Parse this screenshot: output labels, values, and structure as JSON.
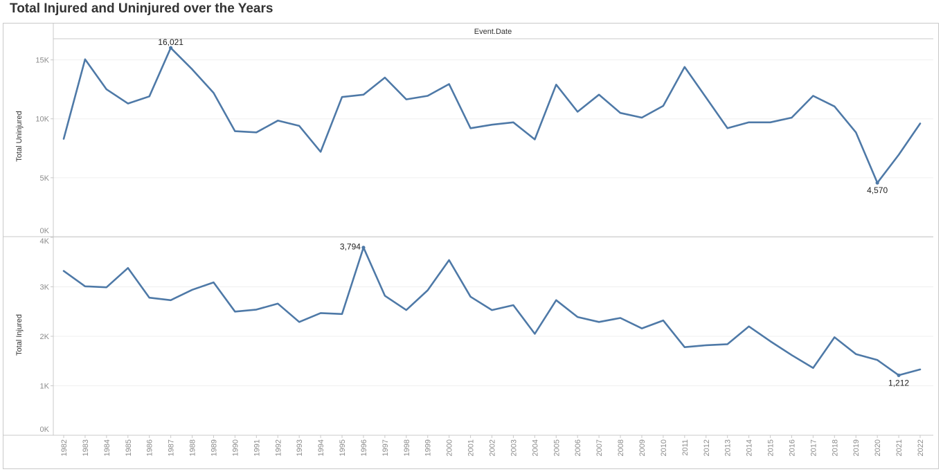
{
  "title": "Total Injured and Uninjured over the Years",
  "chart_data": {
    "type": "line",
    "title": "Total Injured and Uninjured over the Years",
    "column_header": "Event.Date",
    "x_ticks": [
      "1982",
      "1983",
      "1984",
      "1985",
      "1986",
      "1987",
      "1988",
      "1989",
      "1990",
      "1991",
      "1992",
      "1993",
      "1994",
      "1995",
      "1996",
      "1997",
      "1998",
      "1999",
      "2000",
      "2001",
      "2002",
      "2003",
      "2004",
      "2005",
      "2006",
      "2007",
      "2008",
      "2009",
      "2010",
      "2011",
      "2012",
      "2013",
      "2014",
      "2015",
      "2016",
      "2017",
      "2018",
      "2019",
      "2020",
      "2021",
      "2022"
    ],
    "line_color": "#4e79a7",
    "grid": true,
    "panels": [
      {
        "ylabel": "Total Uninjured",
        "ylim": [
          0,
          16500
        ],
        "yticks": [
          {
            "value": 0,
            "label": "0K"
          },
          {
            "value": 5000,
            "label": "5K"
          },
          {
            "value": 10000,
            "label": "10K"
          },
          {
            "value": 15000,
            "label": "15K"
          }
        ],
        "values": [
          8300,
          15050,
          12500,
          11300,
          11900,
          16021,
          14200,
          12200,
          8950,
          8850,
          9850,
          9400,
          7200,
          11850,
          12050,
          13500,
          11650,
          11950,
          12950,
          9200,
          9500,
          9700,
          8250,
          12900,
          10600,
          12050,
          10500,
          10100,
          11100,
          14400,
          11800,
          9200,
          9700,
          9700,
          10100,
          11950,
          11050,
          8850,
          4570,
          6950,
          9600
        ],
        "annotations": [
          {
            "index": 5,
            "label": "16,021",
            "position": "above"
          },
          {
            "index": 38,
            "label": "4,570",
            "position": "below"
          }
        ]
      },
      {
        "ylabel": "Total Injured",
        "ylim": [
          0,
          4000
        ],
        "yticks": [
          {
            "value": 0,
            "label": "0K"
          },
          {
            "value": 1000,
            "label": "1K"
          },
          {
            "value": 2000,
            "label": "2K"
          },
          {
            "value": 3000,
            "label": "3K"
          },
          {
            "value": 4000,
            "label": "4K"
          }
        ],
        "values": [
          3320,
          3010,
          2990,
          3380,
          2780,
          2730,
          2940,
          3090,
          2500,
          2540,
          2660,
          2290,
          2470,
          2450,
          3794,
          2820,
          2530,
          2930,
          3540,
          2800,
          2530,
          2630,
          2050,
          2730,
          2390,
          2290,
          2370,
          2160,
          2320,
          1780,
          1820,
          1840,
          2200,
          1900,
          1620,
          1360,
          1980,
          1640,
          1520,
          1212,
          1330
        ],
        "annotations": [
          {
            "index": 14,
            "label": "3,794",
            "position": "above-left"
          },
          {
            "index": 39,
            "label": "1,212",
            "position": "below"
          }
        ]
      }
    ]
  }
}
